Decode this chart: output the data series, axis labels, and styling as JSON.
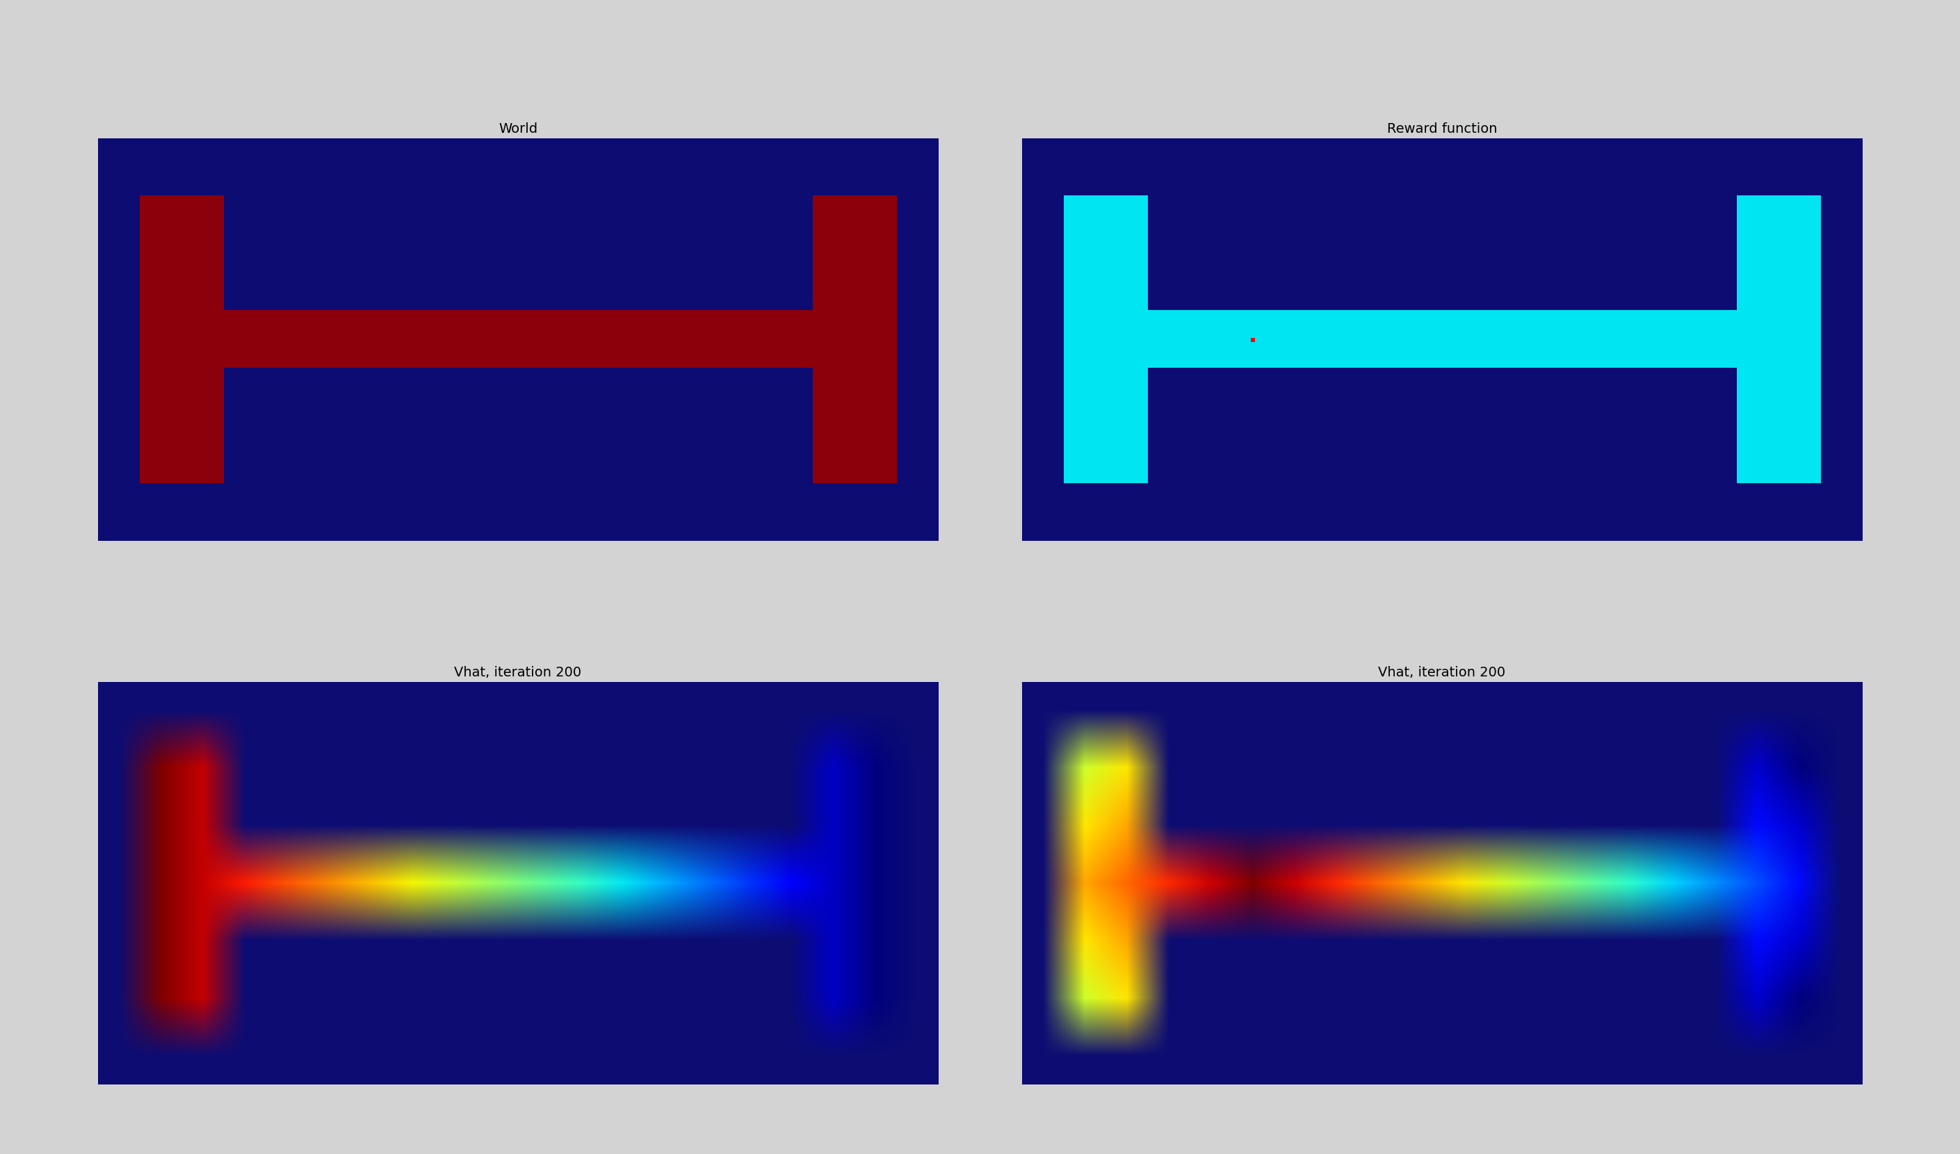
{
  "subplot_titles": [
    "World",
    "Reward function",
    "Vhat, iteration 200",
    "Vhat, iteration 200"
  ],
  "bg_color": "#d3d3d3",
  "wall_color_rgb": [
    0.05,
    0.05,
    0.45
  ],
  "free_color_world_rgb": [
    0.55,
    0.0,
    0.05
  ],
  "free_color_reward_rgb": [
    0.0,
    0.9,
    0.95
  ],
  "robot_color": "red",
  "robot_row": 3,
  "robot_col": 5,
  "nR": 7,
  "nC": 20,
  "figsize": [
    28.19,
    16.6
  ],
  "title_fontsize": 14
}
